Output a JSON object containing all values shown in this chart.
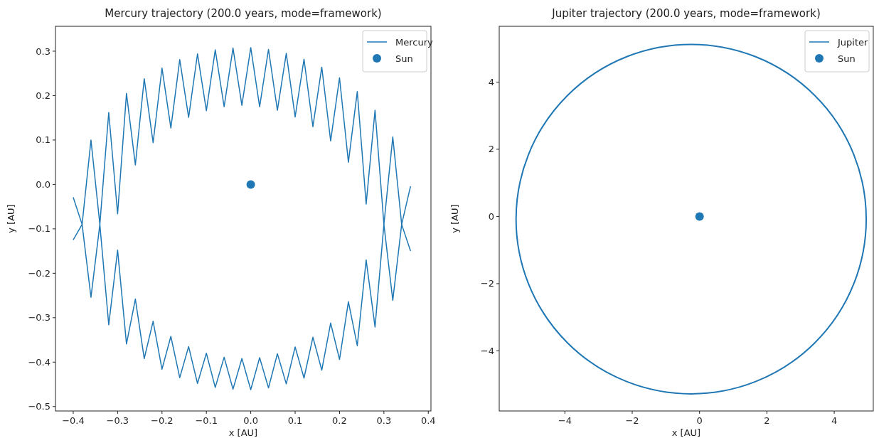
{
  "chart_data": [
    {
      "type": "line",
      "title": "Mercury trajectory (200.0 years, mode=framework)",
      "xlabel": "x [AU]",
      "ylabel": "y [AU]",
      "xlim": [
        -0.44,
        0.406
      ],
      "ylim": [
        -0.51,
        0.356
      ],
      "xticks": [
        {
          "value": -0.4,
          "label": "−0.4"
        },
        {
          "value": -0.3,
          "label": "−0.3"
        },
        {
          "value": -0.2,
          "label": "−0.2"
        },
        {
          "value": -0.1,
          "label": "−0.1"
        },
        {
          "value": 0,
          "label": "0.0"
        },
        0.1,
        0.2,
        0.3,
        0.4
      ],
      "yticks": [
        {
          "value": -0.5,
          "label": "−0.5"
        },
        {
          "value": -0.4,
          "label": "−0.4"
        },
        {
          "value": -0.3,
          "label": "−0.3"
        },
        {
          "value": -0.2,
          "label": "−0.2"
        },
        {
          "value": -0.1,
          "label": "−0.1"
        },
        {
          "value": 0,
          "label": "0.0"
        },
        0.1,
        0.2,
        0.3
      ],
      "grid": false,
      "legend": "top right",
      "series": [
        {
          "name": "Mercury",
          "type": "line",
          "color": "#1f77b4",
          "x": [
            -0.4,
            -0.38,
            -0.36,
            -0.34,
            -0.32,
            -0.3,
            -0.28,
            -0.26,
            -0.24,
            -0.22,
            -0.2,
            -0.18,
            -0.16,
            -0.14,
            -0.12,
            -0.1,
            -0.08,
            -0.06,
            -0.04,
            -0.02,
            0.0,
            0.02,
            0.04,
            0.06,
            0.08,
            0.1,
            0.12,
            0.14,
            0.16,
            0.18,
            0.2,
            0.22,
            0.24,
            0.26,
            0.28,
            0.3,
            0.32,
            0.34,
            0.36
          ],
          "values": [
            -0.029,
            -0.09,
            0.1,
            -0.09,
            0.162,
            -0.066,
            0.205,
            0.044,
            0.238,
            0.094,
            0.262,
            0.127,
            0.281,
            0.151,
            0.294,
            0.166,
            0.303,
            0.175,
            0.307,
            0.178,
            0.308,
            0.175,
            0.304,
            0.167,
            0.295,
            0.152,
            0.282,
            0.13,
            0.264,
            0.098,
            0.24,
            0.05,
            0.209,
            -0.044,
            0.167,
            -0.09,
            0.107,
            -0.09,
            -0.004
          ]
        },
        {
          "type": "line",
          "color": "#1f77b4",
          "x": [
            -0.4,
            -0.38,
            -0.36,
            -0.34,
            -0.32,
            -0.3,
            -0.28,
            -0.26,
            -0.24,
            -0.22,
            -0.2,
            -0.18,
            -0.16,
            -0.14,
            -0.12,
            -0.1,
            -0.08,
            -0.06,
            -0.04,
            -0.02,
            0.0,
            0.02,
            0.04,
            0.06,
            0.08,
            0.1,
            0.12,
            0.14,
            0.16,
            0.18,
            0.2,
            0.22,
            0.24,
            0.26,
            0.28,
            0.3,
            0.32,
            0.34,
            0.36
          ],
          "values": [
            -0.125,
            -0.09,
            -0.254,
            -0.09,
            -0.316,
            -0.148,
            -0.359,
            -0.258,
            -0.392,
            -0.308,
            -0.416,
            -0.342,
            -0.435,
            -0.365,
            -0.448,
            -0.38,
            -0.457,
            -0.389,
            -0.461,
            -0.392,
            -0.462,
            -0.39,
            -0.458,
            -0.381,
            -0.449,
            -0.366,
            -0.436,
            -0.344,
            -0.418,
            -0.312,
            -0.394,
            -0.264,
            -0.363,
            -0.17,
            -0.321,
            -0.09,
            -0.261,
            -0.09,
            -0.15
          ]
        },
        {
          "name": "Sun",
          "type": "scatter",
          "marker": "circle",
          "color": "#1f77b4",
          "x": [
            0
          ],
          "values": [
            0
          ]
        }
      ]
    },
    {
      "type": "line",
      "title": "Jupiter trajectory (200.0 years, mode=framework)",
      "xlabel": "x [AU]",
      "ylabel": "y [AU]",
      "xlim": [
        -5.95,
        5.16
      ],
      "ylim": [
        -5.79,
        5.66
      ],
      "xticks": [
        {
          "value": -4,
          "label": "−4"
        },
        {
          "value": -2,
          "label": "−2"
        },
        0,
        2,
        4
      ],
      "yticks": [
        {
          "value": -4,
          "label": "−4"
        },
        {
          "value": -2,
          "label": "−2"
        },
        0,
        2,
        4
      ],
      "grid": false,
      "legend": "top right",
      "series": [
        {
          "name": "Jupiter",
          "type": "line",
          "color": "#1f77b4"
        },
        {
          "name": "Sun",
          "type": "scatter",
          "marker": "circle",
          "color": "#1f77b4",
          "x": [
            0
          ],
          "values": [
            0
          ]
        }
      ]
    }
  ]
}
